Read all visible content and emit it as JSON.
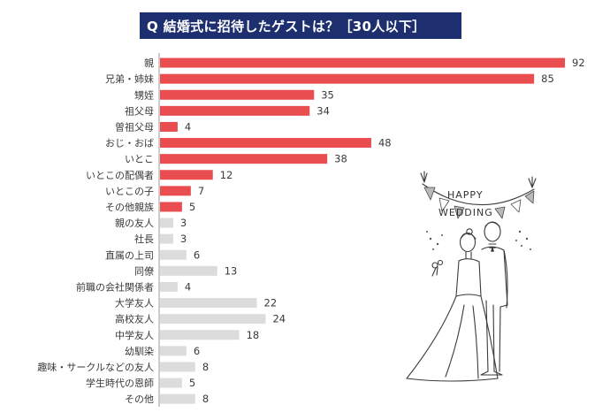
{
  "title": "Q 結婚式に招待したゲストは？［30人以下］",
  "illustration": {
    "banner_word1": "HAPPY",
    "banner_word2": "WEDDING"
  },
  "chart_data": {
    "type": "bar",
    "orientation": "horizontal",
    "title": "Q 結婚式に招待したゲストは？［30人以下］",
    "xlabel": "",
    "ylabel": "",
    "xlim": [
      0,
      92
    ],
    "grid": false,
    "colors": {
      "family": "#ea4d4f",
      "other": "#dcdcdc",
      "title_bg": "#1d2f6f"
    },
    "categories": [
      "親",
      "兄弟・姉妹",
      "甥姪",
      "祖父母",
      "曽祖父母",
      "おじ・おば",
      "いとこ",
      "いとこの配偶者",
      "いとこの子",
      "その他親族",
      "親の友人",
      "社長",
      "直属の上司",
      "同僚",
      "前職の会社関係者",
      "大学友人",
      "高校友人",
      "中学友人",
      "幼馴染",
      "趣味・サークルなどの友人",
      "学生時代の恩師",
      "その他"
    ],
    "values": [
      92,
      85,
      35,
      34,
      4,
      48,
      38,
      12,
      7,
      5,
      3,
      3,
      6,
      13,
      4,
      22,
      24,
      18,
      6,
      8,
      5,
      8
    ],
    "groups": [
      "family",
      "family",
      "family",
      "family",
      "family",
      "family",
      "family",
      "family",
      "family",
      "family",
      "other",
      "other",
      "other",
      "other",
      "other",
      "other",
      "other",
      "other",
      "other",
      "other",
      "other",
      "other"
    ]
  }
}
